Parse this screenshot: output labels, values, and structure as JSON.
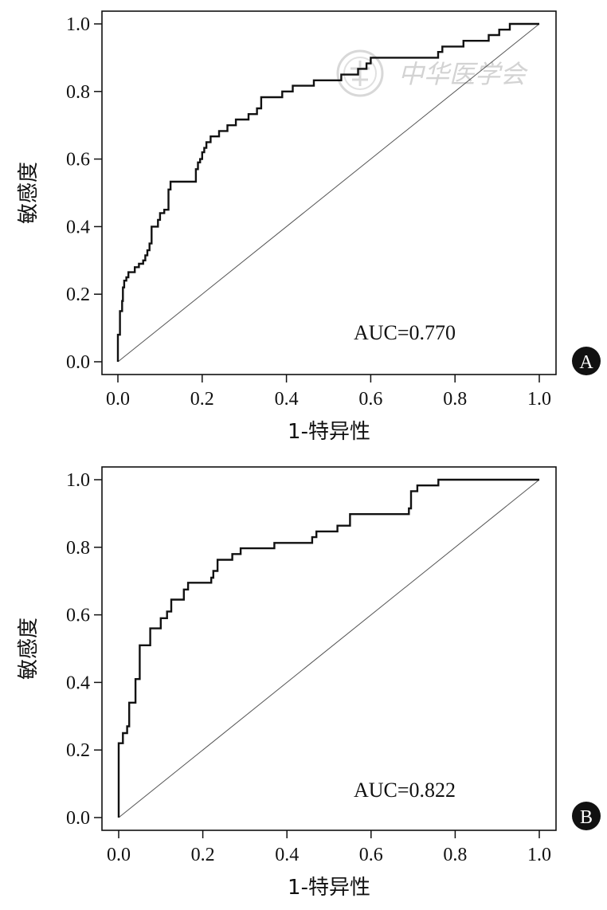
{
  "chart_data": [
    {
      "type": "line",
      "panel_label": "A",
      "xlabel": "1-特异性",
      "ylabel": "敏感度",
      "xlim": [
        0,
        1
      ],
      "ylim": [
        0,
        1
      ],
      "xticks": [
        "0.0",
        "0.2",
        "0.4",
        "0.6",
        "0.8",
        "1.0"
      ],
      "yticks": [
        "0.0",
        "0.2",
        "0.4",
        "0.6",
        "0.8",
        "1.0"
      ],
      "annotation": "AUC=0.770",
      "grid": false,
      "reference_line": [
        [
          0,
          0
        ],
        [
          1,
          1
        ]
      ],
      "series": [
        {
          "points": [
            [
              0.0,
              0.0
            ],
            [
              0.0,
              0.08
            ],
            [
              0.005,
              0.08
            ],
            [
              0.005,
              0.15
            ],
            [
              0.01,
              0.15
            ],
            [
              0.01,
              0.18
            ],
            [
              0.012,
              0.18
            ],
            [
              0.012,
              0.22
            ],
            [
              0.015,
              0.22
            ],
            [
              0.015,
              0.24
            ],
            [
              0.02,
              0.24
            ],
            [
              0.02,
              0.25
            ],
            [
              0.025,
              0.25
            ],
            [
              0.025,
              0.265
            ],
            [
              0.04,
              0.265
            ],
            [
              0.04,
              0.28
            ],
            [
              0.05,
              0.28
            ],
            [
              0.05,
              0.29
            ],
            [
              0.06,
              0.29
            ],
            [
              0.06,
              0.3
            ],
            [
              0.065,
              0.3
            ],
            [
              0.065,
              0.315
            ],
            [
              0.07,
              0.315
            ],
            [
              0.07,
              0.33
            ],
            [
              0.075,
              0.33
            ],
            [
              0.075,
              0.35
            ],
            [
              0.08,
              0.35
            ],
            [
              0.08,
              0.4
            ],
            [
              0.09,
              0.4
            ],
            [
              0.095,
              0.4
            ],
            [
              0.095,
              0.42
            ],
            [
              0.1,
              0.42
            ],
            [
              0.1,
              0.44
            ],
            [
              0.11,
              0.44
            ],
            [
              0.11,
              0.45
            ],
            [
              0.12,
              0.45
            ],
            [
              0.12,
              0.51
            ],
            [
              0.125,
              0.51
            ],
            [
              0.125,
              0.533
            ],
            [
              0.185,
              0.533
            ],
            [
              0.185,
              0.57
            ],
            [
              0.19,
              0.57
            ],
            [
              0.19,
              0.59
            ],
            [
              0.195,
              0.59
            ],
            [
              0.195,
              0.6
            ],
            [
              0.2,
              0.6
            ],
            [
              0.2,
              0.62
            ],
            [
              0.205,
              0.62
            ],
            [
              0.205,
              0.633
            ],
            [
              0.21,
              0.633
            ],
            [
              0.21,
              0.65
            ],
            [
              0.22,
              0.65
            ],
            [
              0.22,
              0.667
            ],
            [
              0.24,
              0.667
            ],
            [
              0.24,
              0.683
            ],
            [
              0.26,
              0.683
            ],
            [
              0.26,
              0.7
            ],
            [
              0.28,
              0.7
            ],
            [
              0.28,
              0.717
            ],
            [
              0.31,
              0.717
            ],
            [
              0.31,
              0.733
            ],
            [
              0.33,
              0.733
            ],
            [
              0.33,
              0.75
            ],
            [
              0.34,
              0.75
            ],
            [
              0.34,
              0.783
            ],
            [
              0.39,
              0.783
            ],
            [
              0.39,
              0.8
            ],
            [
              0.415,
              0.8
            ],
            [
              0.415,
              0.817
            ],
            [
              0.465,
              0.817
            ],
            [
              0.465,
              0.833
            ],
            [
              0.53,
              0.833
            ],
            [
              0.53,
              0.85
            ],
            [
              0.57,
              0.85
            ],
            [
              0.57,
              0.867
            ],
            [
              0.59,
              0.867
            ],
            [
              0.59,
              0.883
            ],
            [
              0.6,
              0.883
            ],
            [
              0.6,
              0.9
            ],
            [
              0.76,
              0.9
            ],
            [
              0.76,
              0.917
            ],
            [
              0.77,
              0.917
            ],
            [
              0.77,
              0.933
            ],
            [
              0.82,
              0.933
            ],
            [
              0.82,
              0.95
            ],
            [
              0.88,
              0.95
            ],
            [
              0.88,
              0.967
            ],
            [
              0.905,
              0.967
            ],
            [
              0.905,
              0.983
            ],
            [
              0.93,
              0.983
            ],
            [
              0.93,
              1.0
            ],
            [
              1.0,
              1.0
            ]
          ]
        }
      ]
    },
    {
      "type": "line",
      "panel_label": "B",
      "xlabel": "1-特异性",
      "ylabel": "敏感度",
      "xlim": [
        0,
        1
      ],
      "ylim": [
        0,
        1
      ],
      "xticks": [
        "0.0",
        "0.2",
        "0.4",
        "0.6",
        "0.8",
        "1.0"
      ],
      "yticks": [
        "0.0",
        "0.2",
        "0.4",
        "0.6",
        "0.8",
        "1.0"
      ],
      "annotation": "AUC=0.822",
      "grid": false,
      "reference_line": [
        [
          0,
          0
        ],
        [
          1,
          1
        ]
      ],
      "series": [
        {
          "points": [
            [
              0.0,
              0.0
            ],
            [
              0.0,
              0.22
            ],
            [
              0.01,
              0.22
            ],
            [
              0.01,
              0.25
            ],
            [
              0.02,
              0.25
            ],
            [
              0.02,
              0.27
            ],
            [
              0.025,
              0.27
            ],
            [
              0.025,
              0.34
            ],
            [
              0.04,
              0.34
            ],
            [
              0.04,
              0.41
            ],
            [
              0.05,
              0.41
            ],
            [
              0.05,
              0.51
            ],
            [
              0.075,
              0.51
            ],
            [
              0.075,
              0.56
            ],
            [
              0.1,
              0.56
            ],
            [
              0.1,
              0.59
            ],
            [
              0.115,
              0.59
            ],
            [
              0.115,
              0.61
            ],
            [
              0.125,
              0.61
            ],
            [
              0.125,
              0.645
            ],
            [
              0.155,
              0.645
            ],
            [
              0.155,
              0.675
            ],
            [
              0.165,
              0.675
            ],
            [
              0.165,
              0.695
            ],
            [
              0.22,
              0.695
            ],
            [
              0.22,
              0.71
            ],
            [
              0.225,
              0.71
            ],
            [
              0.225,
              0.73
            ],
            [
              0.235,
              0.73
            ],
            [
              0.235,
              0.763
            ],
            [
              0.27,
              0.763
            ],
            [
              0.27,
              0.78
            ],
            [
              0.29,
              0.78
            ],
            [
              0.29,
              0.797
            ],
            [
              0.37,
              0.797
            ],
            [
              0.37,
              0.813
            ],
            [
              0.46,
              0.813
            ],
            [
              0.46,
              0.83
            ],
            [
              0.47,
              0.83
            ],
            [
              0.47,
              0.847
            ],
            [
              0.52,
              0.847
            ],
            [
              0.52,
              0.864
            ],
            [
              0.55,
              0.864
            ],
            [
              0.55,
              0.898
            ],
            [
              0.69,
              0.898
            ],
            [
              0.69,
              0.915
            ],
            [
              0.695,
              0.915
            ],
            [
              0.695,
              0.966
            ],
            [
              0.71,
              0.966
            ],
            [
              0.71,
              0.983
            ],
            [
              0.76,
              0.983
            ],
            [
              0.76,
              1.0
            ],
            [
              1.0,
              1.0
            ]
          ]
        }
      ]
    }
  ],
  "watermark": {
    "text": "中华医学会"
  }
}
